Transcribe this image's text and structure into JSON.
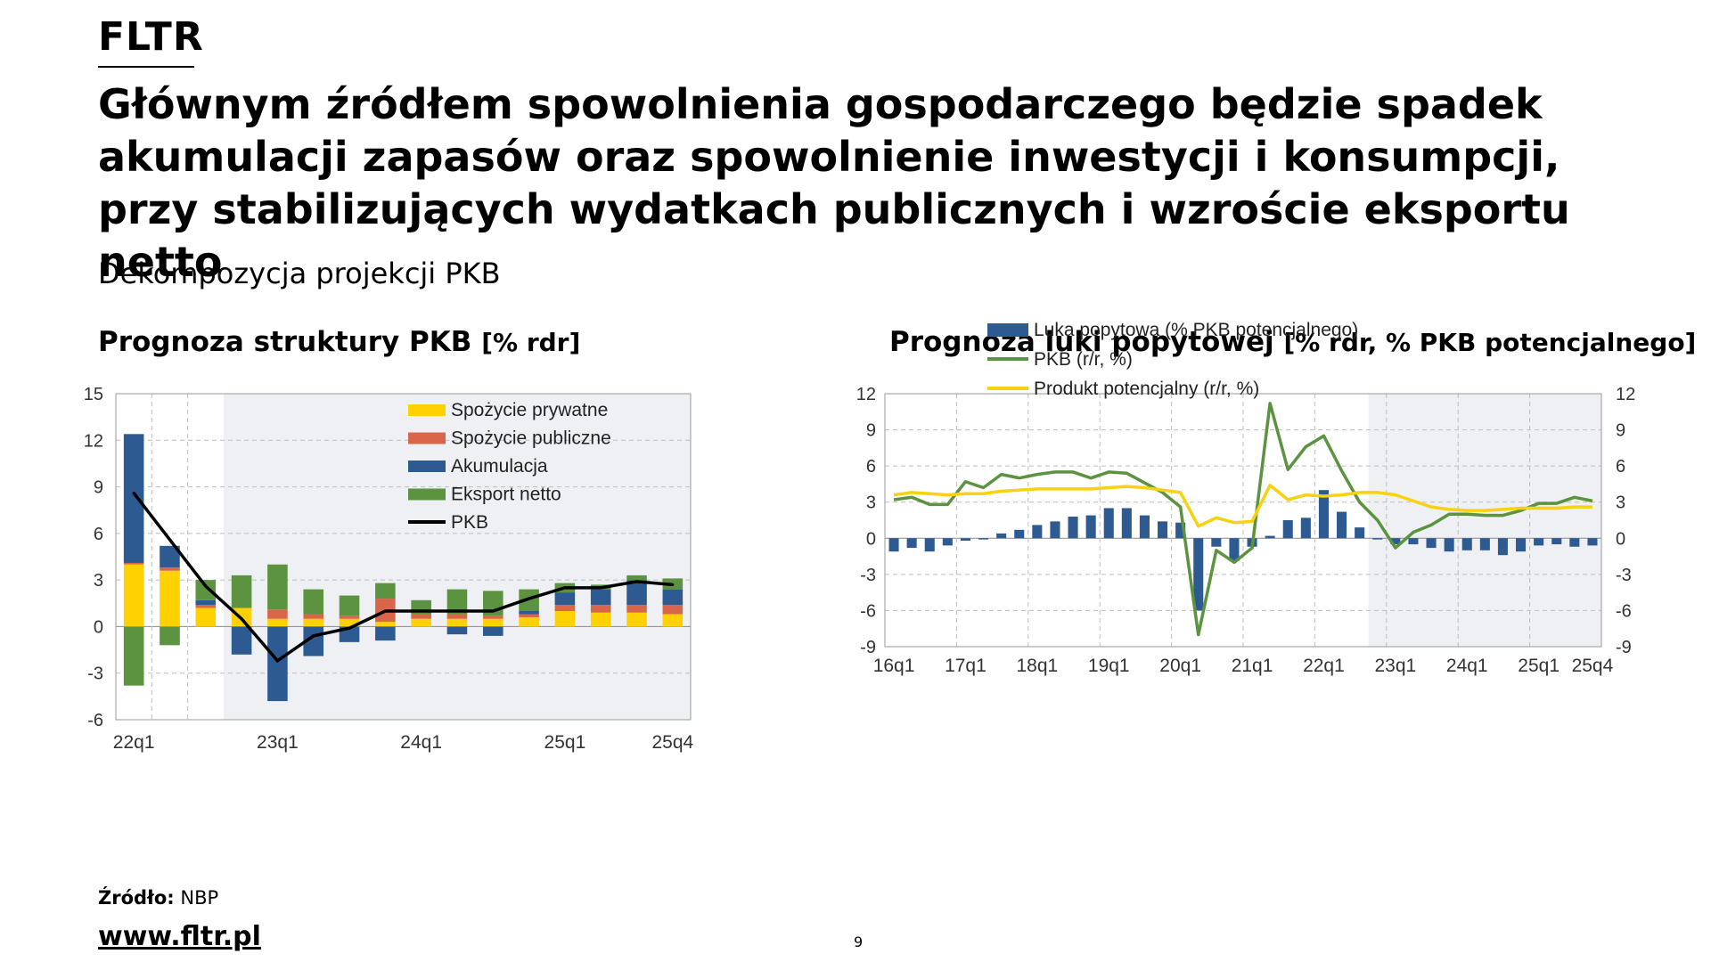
{
  "brand": "FLTR",
  "headline": "Głównym źródłem spowolnienia gospodarczego będzie spadek akumulacji zapasów oraz spowolnienie inwestycji i konsumpcji, przy stabilizujących wydatkach publicznych i wzroście eksportu netto",
  "subtitle": "Dekompozycja projekcji PKB",
  "left_title": {
    "main": "Prognoza struktury PKB",
    "unit": "[% rdr]"
  },
  "right_title": {
    "main": "Prognoza luki popytowej",
    "unit": "[% rdr, % PKB potencjalnego]"
  },
  "source_label": "Źródło:",
  "source_value": "NBP",
  "website": "www.fltr.pl",
  "page_number": "9",
  "colors": {
    "private": "#FFD100",
    "public": "#D9664A",
    "accumulation": "#2E5A92",
    "net_export": "#5B9340",
    "gdp_line": "#000000",
    "gap_bar": "#2E5A92",
    "gdp_green": "#5B9340",
    "potential": "#F8D20F",
    "forecast_shade": "#EEF0F3",
    "grid": "#BDBDBD"
  },
  "chart_data": [
    {
      "type": "bar",
      "stacked": true,
      "title": "Prognoza struktury PKB [% rdr]",
      "categories": [
        "22q1",
        "22q2",
        "22q3",
        "22q4",
        "23q1",
        "23q2",
        "23q3",
        "23q4",
        "24q1",
        "24q2",
        "24q3",
        "24q4",
        "25q1",
        "25q2",
        "25q3",
        "25q4"
      ],
      "x_tick_labels": [
        {
          "index": 0,
          "label": "22q1"
        },
        {
          "index": 4,
          "label": "23q1"
        },
        {
          "index": 8,
          "label": "24q1"
        },
        {
          "index": 12,
          "label": "25q1"
        },
        {
          "index": 15,
          "label": "25q4"
        }
      ],
      "ylim": [
        -6,
        15
      ],
      "yticks": [
        -6,
        -3,
        0,
        3,
        6,
        9,
        12,
        15
      ],
      "forecast_start_index": 3,
      "series": [
        {
          "name": "Spożycie prywatne",
          "key": "private",
          "values": [
            4.0,
            3.6,
            1.2,
            1.2,
            0.5,
            0.5,
            0.5,
            0.3,
            0.5,
            0.5,
            0.5,
            0.6,
            1.0,
            0.9,
            0.9,
            0.8
          ]
        },
        {
          "name": "Spożycie publiczne",
          "key": "public",
          "values": [
            0.1,
            0.2,
            0.2,
            0.0,
            0.6,
            0.3,
            0.2,
            1.5,
            0.3,
            0.3,
            0.2,
            0.2,
            0.4,
            0.5,
            0.5,
            0.6
          ]
        },
        {
          "name": "Akumulacja",
          "key": "accumulation",
          "values": [
            8.3,
            1.4,
            0.3,
            -1.8,
            -4.8,
            -1.9,
            -1.0,
            -0.9,
            0.0,
            -0.5,
            -0.6,
            0.2,
            0.8,
            1.0,
            1.6,
            1.0
          ]
        },
        {
          "name": "Eksport netto",
          "key": "net_export",
          "values": [
            -3.8,
            -1.2,
            1.3,
            2.1,
            2.9,
            1.6,
            1.3,
            1.0,
            0.9,
            1.6,
            1.6,
            1.4,
            0.6,
            0.3,
            0.3,
            0.7
          ]
        }
      ],
      "line": {
        "name": "PKB",
        "key": "gdp_line",
        "values": [
          8.6,
          5.6,
          2.6,
          0.5,
          -2.2,
          -0.6,
          -0.1,
          1.0,
          1.0,
          1.0,
          1.0,
          1.8,
          2.5,
          2.5,
          2.9,
          2.7
        ]
      },
      "legend": [
        "Spożycie prywatne",
        "Spożycie publiczne",
        "Akumulacja",
        "Eksport netto",
        "PKB"
      ],
      "legend_position": "top-right",
      "grid": true
    },
    {
      "type": "bar",
      "title": "Prognoza luki popytowej [% rdr, % PKB potencjalnego]",
      "categories": [
        "16q1",
        "16q2",
        "16q3",
        "16q4",
        "17q1",
        "17q2",
        "17q3",
        "17q4",
        "18q1",
        "18q2",
        "18q3",
        "18q4",
        "19q1",
        "19q2",
        "19q3",
        "19q4",
        "20q1",
        "20q2",
        "20q3",
        "20q4",
        "21q1",
        "21q2",
        "21q3",
        "21q4",
        "22q1",
        "22q2",
        "22q3",
        "22q4",
        "23q1",
        "23q2",
        "23q3",
        "23q4",
        "24q1",
        "24q2",
        "24q3",
        "24q4",
        "25q1",
        "25q2",
        "25q3",
        "25q4"
      ],
      "x_tick_labels": [
        {
          "index": 0,
          "label": "16q1"
        },
        {
          "index": 4,
          "label": "17q1"
        },
        {
          "index": 8,
          "label": "18q1"
        },
        {
          "index": 12,
          "label": "19q1"
        },
        {
          "index": 16,
          "label": "20q1"
        },
        {
          "index": 20,
          "label": "21q1"
        },
        {
          "index": 24,
          "label": "22q1"
        },
        {
          "index": 28,
          "label": "23q1"
        },
        {
          "index": 32,
          "label": "24q1"
        },
        {
          "index": 36,
          "label": "25q1"
        },
        {
          "index": 39,
          "label": "25q4"
        }
      ],
      "ylim": [
        -9,
        12
      ],
      "yticks": [
        -9,
        -6,
        -3,
        0,
        3,
        6,
        9,
        12
      ],
      "forecast_start_index": 27,
      "bars": {
        "name": "Luka popytowa (% PKB potencjalnego)",
        "key": "gap_bar",
        "values": [
          -1.1,
          -0.8,
          -1.1,
          -0.6,
          -0.2,
          -0.1,
          0.4,
          0.7,
          1.1,
          1.4,
          1.8,
          1.9,
          2.5,
          2.5,
          1.9,
          1.4,
          1.3,
          -6.0,
          -0.7,
          -1.9,
          -0.7,
          0.2,
          1.5,
          1.7,
          4.0,
          2.2,
          0.9,
          -0.1,
          -0.5,
          -0.5,
          -0.8,
          -1.1,
          -1.0,
          -1.0,
          -1.4,
          -1.1,
          -0.6,
          -0.5,
          -0.7,
          -0.6
        ]
      },
      "lines": [
        {
          "name": "PKB (r/r, %)",
          "key": "gdp_green",
          "values": [
            3.2,
            3.4,
            2.8,
            2.8,
            4.7,
            4.2,
            5.3,
            5.0,
            5.3,
            5.5,
            5.5,
            5.0,
            5.5,
            5.4,
            4.6,
            3.8,
            2.6,
            -8.0,
            -1.0,
            -2.0,
            -0.8,
            11.2,
            5.7,
            7.6,
            8.5,
            5.6,
            3.0,
            1.5,
            -0.8,
            0.5,
            1.1,
            2.0,
            2.0,
            1.9,
            1.9,
            2.3,
            2.9,
            2.9,
            3.4,
            3.1
          ]
        },
        {
          "name": "Produkt potencjalny (r/r, %)",
          "key": "potential",
          "values": [
            3.6,
            3.8,
            3.7,
            3.6,
            3.7,
            3.7,
            3.9,
            4.0,
            4.1,
            4.1,
            4.1,
            4.1,
            4.2,
            4.3,
            4.2,
            4.0,
            3.8,
            1.0,
            1.7,
            1.3,
            1.4,
            4.4,
            3.2,
            3.6,
            3.5,
            3.6,
            3.8,
            3.8,
            3.6,
            3.1,
            2.6,
            2.4,
            2.3,
            2.3,
            2.4,
            2.5,
            2.5,
            2.5,
            2.6,
            2.6
          ]
        }
      ],
      "legend": [
        "Luka popytowa (% PKB potencjalnego)",
        "PKB (r/r, %)",
        "Produkt potencjalny (r/r, %)"
      ],
      "legend_position": "top-right",
      "grid": true
    }
  ]
}
